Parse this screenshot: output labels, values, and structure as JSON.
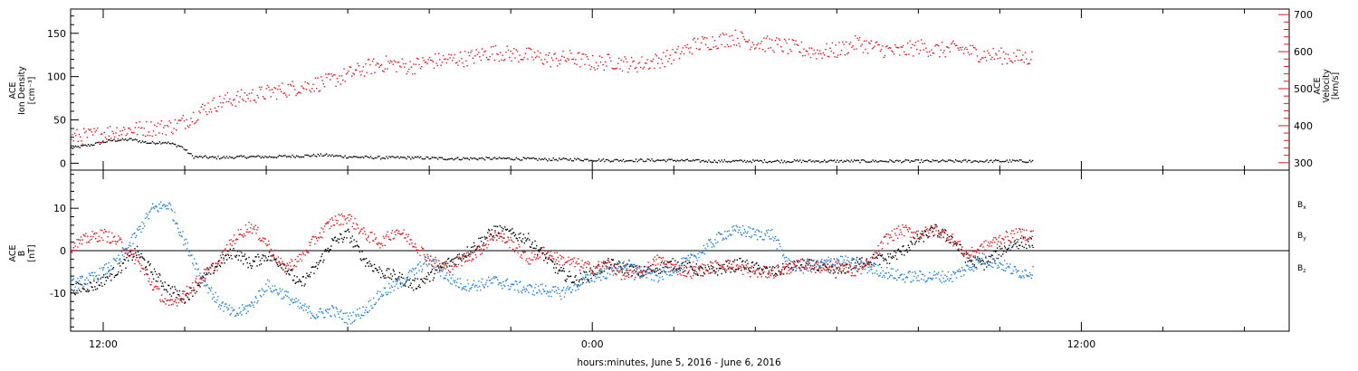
{
  "colors": {
    "black": "#000000",
    "red": "#e8141a",
    "blue": "#1f7fd6"
  },
  "xaxis": {
    "label": "hours:minutes, June  5, 2016 - June  6, 2016",
    "range_hours": [
      -12.8,
      17.1
    ],
    "major_ticks": [
      {
        "t": -12,
        "label": "12:00"
      },
      {
        "t": 0,
        "label": "0:00"
      },
      {
        "t": 12,
        "label": "12:00"
      }
    ],
    "minor_step_hours": 2
  },
  "chart_data": [
    {
      "type": "scatter",
      "panel": "plasma",
      "ylabel_left": [
        "ACE",
        "Ion Density",
        "[cm⁻³]"
      ],
      "ylabel_right": [
        "ACE",
        "Velocity",
        "[km/s]"
      ],
      "ylim_left": [
        -8,
        178
      ],
      "ylim_right": [
        280,
        715
      ],
      "yticks_left": [
        0,
        50,
        100,
        150
      ],
      "yticks_right": [
        300,
        400,
        500,
        600,
        700
      ],
      "series": [
        {
          "axis": "left",
          "color": "black",
          "points": [
            [
              -12.8,
              18
            ],
            [
              -12.3,
              22
            ],
            [
              -11.8,
              27
            ],
            [
              -11.3,
              28
            ],
            [
              -10.9,
              24
            ],
            [
              -10.5,
              25
            ],
            [
              -10.1,
              20
            ],
            [
              -9.8,
              8
            ],
            [
              -9.2,
              7
            ],
            [
              -8.5,
              8
            ],
            [
              -7.9,
              8
            ],
            [
              -7.2,
              9
            ],
            [
              -6.6,
              10
            ],
            [
              -6.0,
              8
            ],
            [
              -5.2,
              7
            ],
            [
              -4.4,
              7
            ],
            [
              -3.6,
              6
            ],
            [
              -2.8,
              6
            ],
            [
              -2.0,
              6
            ],
            [
              -1.2,
              5
            ],
            [
              -0.4,
              5
            ],
            [
              0.4,
              4
            ],
            [
              1.2,
              4
            ],
            [
              2.0,
              4
            ],
            [
              2.8,
              3
            ],
            [
              3.6,
              3
            ],
            [
              4.4,
              3
            ],
            [
              5.2,
              3
            ],
            [
              6.0,
              3
            ],
            [
              6.8,
              3
            ],
            [
              7.6,
              3
            ],
            [
              8.4,
              3
            ],
            [
              9.2,
              3
            ],
            [
              10.0,
              3
            ],
            [
              10.8,
              3
            ]
          ]
        },
        {
          "axis": "right",
          "color": "red",
          "points": [
            [
              -12.8,
              370
            ],
            [
              -12.3,
              375
            ],
            [
              -11.8,
              385
            ],
            [
              -11.3,
              392
            ],
            [
              -10.8,
              395
            ],
            [
              -10.3,
              400
            ],
            [
              -9.9,
              420
            ],
            [
              -9.5,
              450
            ],
            [
              -9.0,
              470
            ],
            [
              -8.5,
              480
            ],
            [
              -8.0,
              490
            ],
            [
              -7.5,
              500
            ],
            [
              -7.0,
              510
            ],
            [
              -6.5,
              520
            ],
            [
              -6.0,
              540
            ],
            [
              -5.5,
              560
            ],
            [
              -5.0,
              570
            ],
            [
              -4.5,
              560
            ],
            [
              -4.0,
              575
            ],
            [
              -3.5,
              580
            ],
            [
              -3.0,
              585
            ],
            [
              -2.5,
              600
            ],
            [
              -2.0,
              595
            ],
            [
              -1.5,
              590
            ],
            [
              -1.0,
              580
            ],
            [
              -0.5,
              585
            ],
            [
              0.0,
              570
            ],
            [
              0.5,
              575
            ],
            [
              1.0,
              565
            ],
            [
              1.5,
              575
            ],
            [
              2.0,
              590
            ],
            [
              2.5,
              620
            ],
            [
              3.0,
              630
            ],
            [
              3.5,
              640
            ],
            [
              4.0,
              625
            ],
            [
              4.5,
              620
            ],
            [
              5.0,
              610
            ],
            [
              5.5,
              600
            ],
            [
              6.0,
              605
            ],
            [
              6.5,
              625
            ],
            [
              7.0,
              610
            ],
            [
              7.5,
              600
            ],
            [
              8.0,
              615
            ],
            [
              8.5,
              605
            ],
            [
              9.0,
              610
            ],
            [
              9.5,
              595
            ],
            [
              10.0,
              590
            ],
            [
              10.5,
              585
            ],
            [
              10.8,
              585
            ]
          ]
        }
      ]
    },
    {
      "type": "scatter",
      "panel": "magnetic",
      "ylabel_left": [
        "ACE",
        "B",
        "[nT]"
      ],
      "ylim": [
        -19,
        19
      ],
      "yticks": [
        -10,
        0,
        10
      ],
      "zero_line": true,
      "series": [
        {
          "name": "B",
          "subscript": "x",
          "color": "black",
          "points": [
            [
              -12.8,
              -9
            ],
            [
              -12.2,
              -8
            ],
            [
              -11.6,
              -4
            ],
            [
              -11.2,
              0
            ],
            [
              -10.8,
              -5
            ],
            [
              -10.4,
              -9
            ],
            [
              -10.0,
              -11
            ],
            [
              -9.6,
              -7
            ],
            [
              -9.2,
              -3
            ],
            [
              -8.8,
              0
            ],
            [
              -8.4,
              -3
            ],
            [
              -8.0,
              -1
            ],
            [
              -7.6,
              -3
            ],
            [
              -7.2,
              -8
            ],
            [
              -6.8,
              -4
            ],
            [
              -6.4,
              2
            ],
            [
              -6.0,
              4
            ],
            [
              -5.6,
              -2
            ],
            [
              -5.2,
              -5
            ],
            [
              -4.8,
              -6
            ],
            [
              -4.4,
              -8
            ],
            [
              -4.0,
              -6
            ],
            [
              -3.6,
              -3
            ],
            [
              -3.2,
              -1
            ],
            [
              -2.8,
              2
            ],
            [
              -2.4,
              5
            ],
            [
              -2.0,
              4
            ],
            [
              -1.6,
              3
            ],
            [
              -1.2,
              -1
            ],
            [
              -0.8,
              -5
            ],
            [
              -0.4,
              -7
            ],
            [
              0.0,
              -5
            ],
            [
              0.4,
              -3
            ],
            [
              0.8,
              -4
            ],
            [
              1.2,
              -5
            ],
            [
              1.6,
              -4
            ],
            [
              2.0,
              -3
            ],
            [
              2.4,
              -4
            ],
            [
              2.8,
              -5
            ],
            [
              3.2,
              -4
            ],
            [
              3.6,
              -3
            ],
            [
              4.0,
              -4
            ],
            [
              4.4,
              -5
            ],
            [
              4.8,
              -4
            ],
            [
              5.2,
              -3
            ],
            [
              5.6,
              -4
            ],
            [
              6.0,
              -5
            ],
            [
              6.4,
              -3
            ],
            [
              6.8,
              -2
            ],
            [
              7.2,
              -2
            ],
            [
              7.6,
              0
            ],
            [
              8.0,
              3
            ],
            [
              8.4,
              5
            ],
            [
              8.8,
              3
            ],
            [
              9.2,
              -2
            ],
            [
              9.6,
              -3
            ],
            [
              10.0,
              0
            ],
            [
              10.4,
              2
            ],
            [
              10.8,
              2
            ]
          ]
        },
        {
          "name": "B",
          "subscript": "y",
          "color": "blue",
          "points": [
            [
              -12.8,
              -8
            ],
            [
              -12.2,
              -6
            ],
            [
              -11.6,
              -2
            ],
            [
              -11.2,
              4
            ],
            [
              -10.8,
              10
            ],
            [
              -10.4,
              11
            ],
            [
              -10.0,
              2
            ],
            [
              -9.6,
              -6
            ],
            [
              -9.2,
              -12
            ],
            [
              -8.8,
              -15
            ],
            [
              -8.4,
              -13
            ],
            [
              -8.0,
              -8
            ],
            [
              -7.6,
              -10
            ],
            [
              -7.2,
              -13
            ],
            [
              -6.8,
              -15
            ],
            [
              -6.4,
              -14
            ],
            [
              -6.0,
              -16
            ],
            [
              -5.6,
              -14
            ],
            [
              -5.2,
              -10
            ],
            [
              -4.8,
              -8
            ],
            [
              -4.4,
              -5
            ],
            [
              -4.0,
              -2
            ],
            [
              -3.6,
              -6
            ],
            [
              -3.2,
              -8
            ],
            [
              -2.8,
              -8
            ],
            [
              -2.4,
              -7
            ],
            [
              -2.0,
              -8
            ],
            [
              -1.6,
              -9
            ],
            [
              -1.2,
              -9
            ],
            [
              -0.8,
              -10
            ],
            [
              -0.4,
              -8
            ],
            [
              0.0,
              -6
            ],
            [
              0.4,
              -5
            ],
            [
              0.8,
              -3
            ],
            [
              1.2,
              -5
            ],
            [
              1.6,
              -6
            ],
            [
              2.0,
              -4
            ],
            [
              2.4,
              -2
            ],
            [
              2.8,
              1
            ],
            [
              3.2,
              4
            ],
            [
              3.6,
              5
            ],
            [
              4.0,
              4
            ],
            [
              4.4,
              4
            ],
            [
              4.8,
              -3
            ],
            [
              5.2,
              -4
            ],
            [
              5.6,
              -3
            ],
            [
              6.0,
              -2
            ],
            [
              6.4,
              -3
            ],
            [
              6.8,
              -4
            ],
            [
              7.2,
              -5
            ],
            [
              7.6,
              -6
            ],
            [
              8.0,
              -6
            ],
            [
              8.4,
              -6
            ],
            [
              8.8,
              -6
            ],
            [
              9.2,
              -4
            ],
            [
              9.6,
              -2
            ],
            [
              10.0,
              -3
            ],
            [
              10.4,
              -5
            ],
            [
              10.8,
              -5
            ]
          ]
        },
        {
          "name": "B",
          "subscript": "z",
          "color": "red",
          "points": [
            [
              -12.8,
              1
            ],
            [
              -12.4,
              3
            ],
            [
              -12.0,
              4
            ],
            [
              -11.6,
              2
            ],
            [
              -11.2,
              -2
            ],
            [
              -10.8,
              -8
            ],
            [
              -10.4,
              -13
            ],
            [
              -10.0,
              -10
            ],
            [
              -9.6,
              -6
            ],
            [
              -9.2,
              -3
            ],
            [
              -8.8,
              3
            ],
            [
              -8.4,
              6
            ],
            [
              -8.0,
              2
            ],
            [
              -7.6,
              -4
            ],
            [
              -7.2,
              -2
            ],
            [
              -6.8,
              3
            ],
            [
              -6.4,
              7
            ],
            [
              -6.0,
              8
            ],
            [
              -5.6,
              4
            ],
            [
              -5.2,
              2
            ],
            [
              -4.8,
              5
            ],
            [
              -4.4,
              2
            ],
            [
              -4.0,
              -2
            ],
            [
              -3.6,
              -4
            ],
            [
              -3.2,
              -2
            ],
            [
              -2.8,
              0
            ],
            [
              -2.4,
              4
            ],
            [
              -2.0,
              2
            ],
            [
              -1.6,
              -2
            ],
            [
              -1.2,
              0
            ],
            [
              -0.8,
              -2
            ],
            [
              -0.4,
              -3
            ],
            [
              0.0,
              -4
            ],
            [
              0.4,
              -3
            ],
            [
              0.8,
              -6
            ],
            [
              1.2,
              -5
            ],
            [
              1.6,
              -2
            ],
            [
              2.0,
              -4
            ],
            [
              2.4,
              -5
            ],
            [
              2.8,
              -4
            ],
            [
              3.2,
              -3
            ],
            [
              3.6,
              -4
            ],
            [
              4.0,
              -5
            ],
            [
              4.4,
              -5
            ],
            [
              4.8,
              -4
            ],
            [
              5.2,
              -3
            ],
            [
              5.6,
              -4
            ],
            [
              6.0,
              -3
            ],
            [
              6.4,
              -5
            ],
            [
              6.8,
              -3
            ],
            [
              7.2,
              3
            ],
            [
              7.6,
              5
            ],
            [
              8.0,
              4
            ],
            [
              8.4,
              5
            ],
            [
              8.8,
              3
            ],
            [
              9.2,
              -1
            ],
            [
              9.6,
              1
            ],
            [
              10.0,
              3
            ],
            [
              10.4,
              4
            ],
            [
              10.8,
              4
            ]
          ]
        }
      ]
    }
  ]
}
